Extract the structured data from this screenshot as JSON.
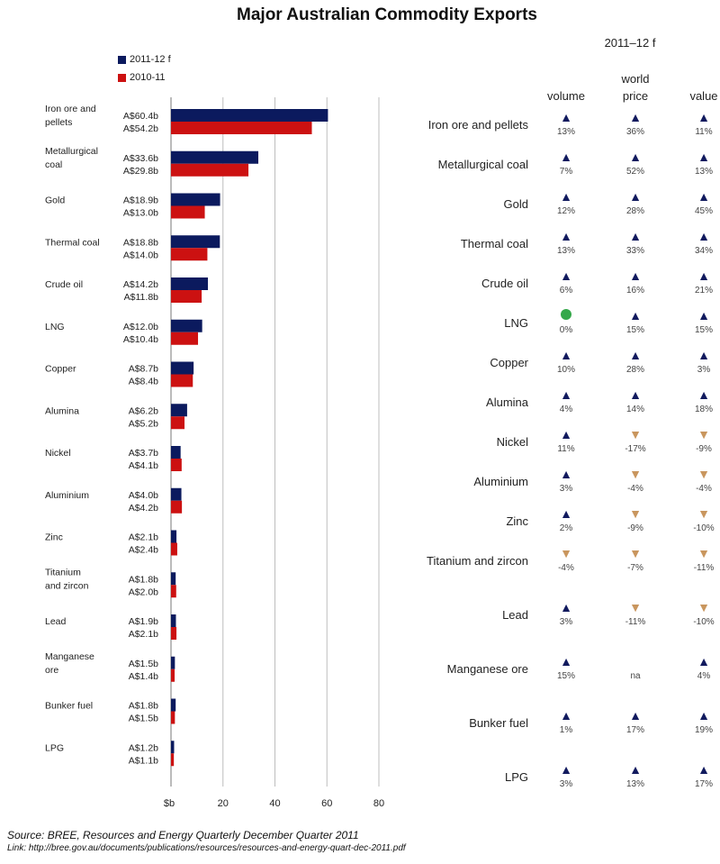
{
  "title": "Major Australian Commodity Exports",
  "colors": {
    "series_2011": "#0b1a5e",
    "series_2010": "#cc1111",
    "up": "#111a5e",
    "down": "#c9965e",
    "flat": "#35a84a"
  },
  "legend": [
    {
      "label": "2011-12  f",
      "color": "#0b1a5e"
    },
    {
      "label": "2010-11",
      "color": "#cc1111"
    }
  ],
  "chart_data": {
    "type": "bar",
    "orientation": "horizontal",
    "categories": [
      "Iron ore and pellets",
      "Metallurgical coal",
      "Gold",
      "Thermal coal",
      "Crude oil",
      "LNG",
      "Copper",
      "Alumina",
      "Nickel",
      "Aluminium",
      "Zinc",
      "Titanium and zircon",
      "Lead",
      "Manganese ore",
      "Bunker fuel",
      "LPG"
    ],
    "category_lines": [
      [
        "Iron ore and",
        "pellets"
      ],
      [
        "Metallurgical",
        "coal"
      ],
      [
        "Gold"
      ],
      [
        "Thermal coal"
      ],
      [
        "Crude oil"
      ],
      [
        "LNG"
      ],
      [
        "Copper"
      ],
      [
        "Alumina"
      ],
      [
        "Nickel"
      ],
      [
        "Aluminium"
      ],
      [
        "Zinc"
      ],
      [
        "Titanium",
        "and zircon"
      ],
      [
        "Lead"
      ],
      [
        "Manganese",
        "ore"
      ],
      [
        "Bunker fuel"
      ],
      [
        "LPG"
      ]
    ],
    "series": [
      {
        "name": "2011-12  f",
        "values": [
          60.4,
          33.6,
          18.9,
          18.8,
          14.2,
          12.0,
          8.7,
          6.2,
          3.7,
          4.0,
          2.1,
          1.8,
          1.9,
          1.5,
          1.8,
          1.2
        ],
        "labels": [
          "A$60.4b",
          "A$33.6b",
          "A$18.9b",
          "A$18.8b",
          "A$14.2b",
          "A$12.0b",
          "A$8.7b",
          "A$6.2b",
          "A$3.7b",
          "A$4.0b",
          "A$2.1b",
          "A$1.8b",
          "A$1.9b",
          "A$1.5b",
          "A$1.8b",
          "A$1.2b"
        ]
      },
      {
        "name": "2010-11",
        "values": [
          54.2,
          29.8,
          13.0,
          14.0,
          11.8,
          10.4,
          8.4,
          5.2,
          4.1,
          4.2,
          2.4,
          2.0,
          2.1,
          1.4,
          1.5,
          1.1
        ],
        "labels": [
          "A$54.2b",
          "A$29.8b",
          "A$13.0b",
          "A$14.0b",
          "A$11.8b",
          "A$10.4b",
          "A$8.4b",
          "A$5.2b",
          "A$4.1b",
          "A$4.2b",
          "A$2.4b",
          "A$2.0b",
          "A$2.1b",
          "A$1.4b",
          "A$1.5b",
          "A$1.1b"
        ]
      }
    ],
    "xlim": [
      0,
      80
    ],
    "xticks": [
      20,
      40,
      60,
      80
    ],
    "x_unit_label": "$b",
    "gridlines": "vertical"
  },
  "table": {
    "period": "2011–12  f",
    "columns": [
      [
        "volume"
      ],
      [
        "world",
        "price"
      ],
      [
        "value"
      ]
    ],
    "rows": [
      {
        "name": "Iron ore and pellets",
        "cells": [
          [
            "up",
            "13%"
          ],
          [
            "up",
            "36%"
          ],
          [
            "up",
            "11%"
          ]
        ]
      },
      {
        "name": "Metallurgical coal",
        "cells": [
          [
            "up",
            "7%"
          ],
          [
            "up",
            "52%"
          ],
          [
            "up",
            "13%"
          ]
        ]
      },
      {
        "name": "Gold",
        "cells": [
          [
            "up",
            "12%"
          ],
          [
            "up",
            "28%"
          ],
          [
            "up",
            "45%"
          ]
        ]
      },
      {
        "name": "Thermal coal",
        "cells": [
          [
            "up",
            "13%"
          ],
          [
            "up",
            "33%"
          ],
          [
            "up",
            "34%"
          ]
        ]
      },
      {
        "name": "Crude oil",
        "cells": [
          [
            "up",
            "6%"
          ],
          [
            "up",
            "16%"
          ],
          [
            "up",
            "21%"
          ]
        ]
      },
      {
        "name": "LNG",
        "cells": [
          [
            "flat",
            "0%"
          ],
          [
            "up",
            "15%"
          ],
          [
            "up",
            "15%"
          ]
        ]
      },
      {
        "name": "Copper",
        "cells": [
          [
            "up",
            "10%"
          ],
          [
            "up",
            "28%"
          ],
          [
            "up",
            "3%"
          ]
        ]
      },
      {
        "name": "Alumina",
        "cells": [
          [
            "up",
            "4%"
          ],
          [
            "up",
            "14%"
          ],
          [
            "up",
            "18%"
          ]
        ]
      },
      {
        "name": "Nickel",
        "cells": [
          [
            "up",
            "11%"
          ],
          [
            "down",
            "-17%"
          ],
          [
            "down",
            "-9%"
          ]
        ]
      },
      {
        "name": "Aluminium",
        "cells": [
          [
            "up",
            "3%"
          ],
          [
            "down",
            "-4%"
          ],
          [
            "down",
            "-4%"
          ]
        ]
      },
      {
        "name": "Zinc",
        "cells": [
          [
            "up",
            "2%"
          ],
          [
            "down",
            "-9%"
          ],
          [
            "down",
            "-10%"
          ]
        ]
      },
      {
        "name": "Titanium and zircon",
        "cells": [
          [
            "down",
            "-4%"
          ],
          [
            "down",
            "-7%"
          ],
          [
            "down",
            "-11%"
          ]
        ]
      },
      {
        "name": "Lead",
        "cells": [
          [
            "up",
            "3%"
          ],
          [
            "down",
            "-11%"
          ],
          [
            "down",
            "-10%"
          ]
        ]
      },
      {
        "name": "Manganese ore",
        "cells": [
          [
            "up",
            "15%"
          ],
          [
            "none",
            "na"
          ],
          [
            "up",
            "4%"
          ]
        ]
      },
      {
        "name": "Bunker fuel",
        "cells": [
          [
            "up",
            "1%"
          ],
          [
            "up",
            "17%"
          ],
          [
            "up",
            "19%"
          ]
        ]
      },
      {
        "name": "LPG",
        "cells": [
          [
            "up",
            "3%"
          ],
          [
            "up",
            "13%"
          ],
          [
            "up",
            "17%"
          ]
        ]
      }
    ]
  },
  "footer": {
    "source": "Source:  BREE, Resources and Energy Quarterly December Quarter 2011",
    "link": "Link:  http://bree.gov.au/documents/publications/resources/resources-and-energy-quart-dec-2011.pdf"
  }
}
